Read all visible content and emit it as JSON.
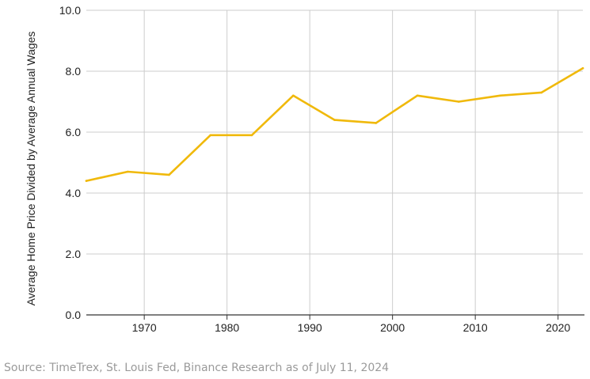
{
  "chart_data": {
    "type": "line",
    "title": "",
    "xlabel": "",
    "ylabel": "Average Home Price Divided by Average Annual Wages",
    "xlim": [
      1963,
      2023
    ],
    "ylim": [
      0,
      10
    ],
    "x_ticks": [
      1970,
      1980,
      1990,
      2000,
      2010,
      2020
    ],
    "y_ticks": [
      "0.0",
      "2.0",
      "4.0",
      "6.0",
      "8.0",
      "10.0"
    ],
    "grid": true,
    "legend": "none",
    "series": [
      {
        "color": "#F0B90B",
        "x": [
          1963,
          1968,
          1973,
          1978,
          1983,
          1988,
          1993,
          1998,
          2003,
          2008,
          2013,
          2018,
          2023
        ],
        "y": [
          4.4,
          4.7,
          4.6,
          5.9,
          5.9,
          7.2,
          6.4,
          6.3,
          7.2,
          7.0,
          7.2,
          7.3,
          8.1
        ]
      }
    ]
  },
  "source": "Source: TimeTrex, St. Louis Fed, Binance Research as of July 11, 2024",
  "colors": {
    "line": "#F0B90B",
    "grid": "#cccccc",
    "axis": "#333333"
  }
}
